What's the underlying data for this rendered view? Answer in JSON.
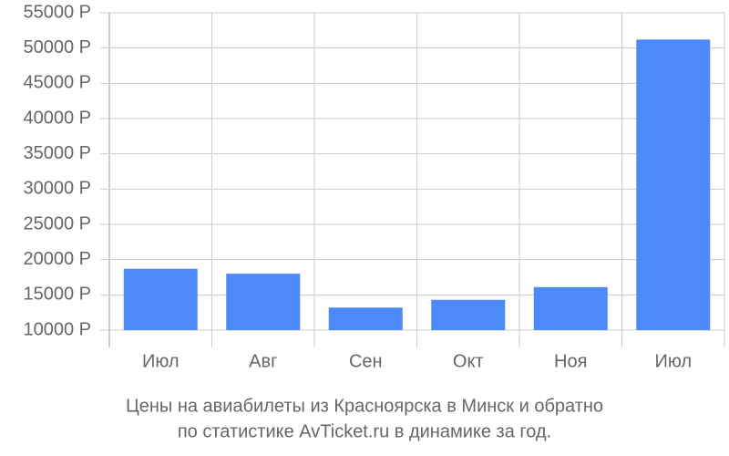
{
  "chart_data": {
    "type": "bar",
    "title": [
      "Цены на авиабилеты из Красноярска в Минск и обратно",
      "по статистике AvTicket.ru в динамике за год."
    ],
    "categories": [
      "Июл",
      "Авг",
      "Сен",
      "Окт",
      "Ноя",
      "Июл"
    ],
    "values": [
      18700,
      18000,
      13200,
      14300,
      16100,
      51200
    ],
    "color": "#4e89fa",
    "ylim": [
      10000,
      55000
    ],
    "yticks": [
      {
        "value": 10000,
        "label": "10000 Р"
      },
      {
        "value": 15000,
        "label": "15000 Р"
      },
      {
        "value": 20000,
        "label": "20000 Р"
      },
      {
        "value": 25000,
        "label": "25000 Р"
      },
      {
        "value": 30000,
        "label": "30000 Р"
      },
      {
        "value": 35000,
        "label": "35000 Р"
      },
      {
        "value": 40000,
        "label": "40000 Р"
      },
      {
        "value": 45000,
        "label": "45000 Р"
      },
      {
        "value": 50000,
        "label": "50000 Р"
      },
      {
        "value": 55000,
        "label": "55000 Р"
      }
    ],
    "grid": true
  }
}
